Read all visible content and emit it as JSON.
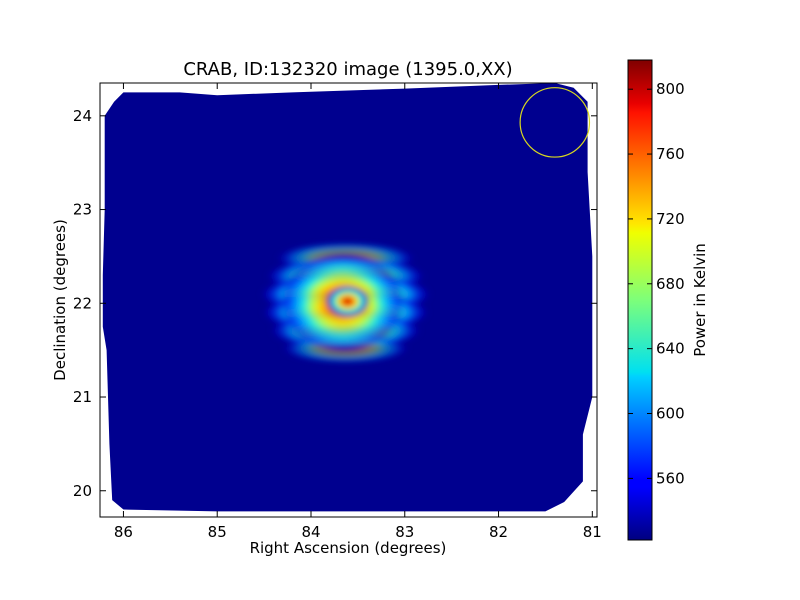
{
  "chart_data": {
    "type": "heatmap",
    "title": "CRAB, ID:132320 image (1395.0,XX)",
    "xlabel": "Right Ascension (degrees)",
    "ylabel": "Declination (degrees)",
    "xlim": [
      86.25,
      80.95
    ],
    "ylim": [
      19.72,
      24.35
    ],
    "x_ticks": [
      86,
      85,
      84,
      83,
      82,
      81
    ],
    "y_ticks": [
      20,
      21,
      22,
      23,
      24
    ],
    "grid": false,
    "background_level_kelvin": 525,
    "peak": {
      "ra": 83.63,
      "dec": 22.01,
      "value_kelvin": 815
    },
    "beam_circle": {
      "ra": 81.4,
      "dec": 23.93,
      "radius_deg": 0.37,
      "color": "#d8d820"
    },
    "coverage_outline": [
      [
        86.0,
        24.25
      ],
      [
        85.4,
        24.25
      ],
      [
        85.0,
        24.22
      ],
      [
        84.2,
        24.25
      ],
      [
        83.0,
        24.29
      ],
      [
        82.0,
        24.33
      ],
      [
        81.4,
        24.35
      ],
      [
        81.2,
        24.3
      ],
      [
        81.05,
        24.15
      ],
      [
        81.05,
        23.4
      ],
      [
        81.0,
        22.5
      ],
      [
        81.0,
        21.5
      ],
      [
        81.0,
        21.0
      ],
      [
        81.1,
        20.6
      ],
      [
        81.1,
        20.1
      ],
      [
        81.3,
        19.88
      ],
      [
        81.5,
        19.78
      ],
      [
        82.2,
        19.78
      ],
      [
        83.0,
        19.78
      ],
      [
        84.0,
        19.78
      ],
      [
        85.0,
        19.78
      ],
      [
        86.0,
        19.8
      ],
      [
        86.12,
        19.9
      ],
      [
        86.15,
        20.5
      ],
      [
        86.18,
        21.5
      ],
      [
        86.22,
        21.75
      ],
      [
        86.22,
        22.3
      ],
      [
        86.2,
        23.0
      ],
      [
        86.2,
        24.0
      ],
      [
        86.1,
        24.15
      ]
    ],
    "colorbar": {
      "label": "Power in Kelvin",
      "min": 522,
      "max": 818,
      "ticks": [
        560,
        600,
        640,
        680,
        720,
        760,
        800
      ],
      "colormap": "jet"
    }
  }
}
